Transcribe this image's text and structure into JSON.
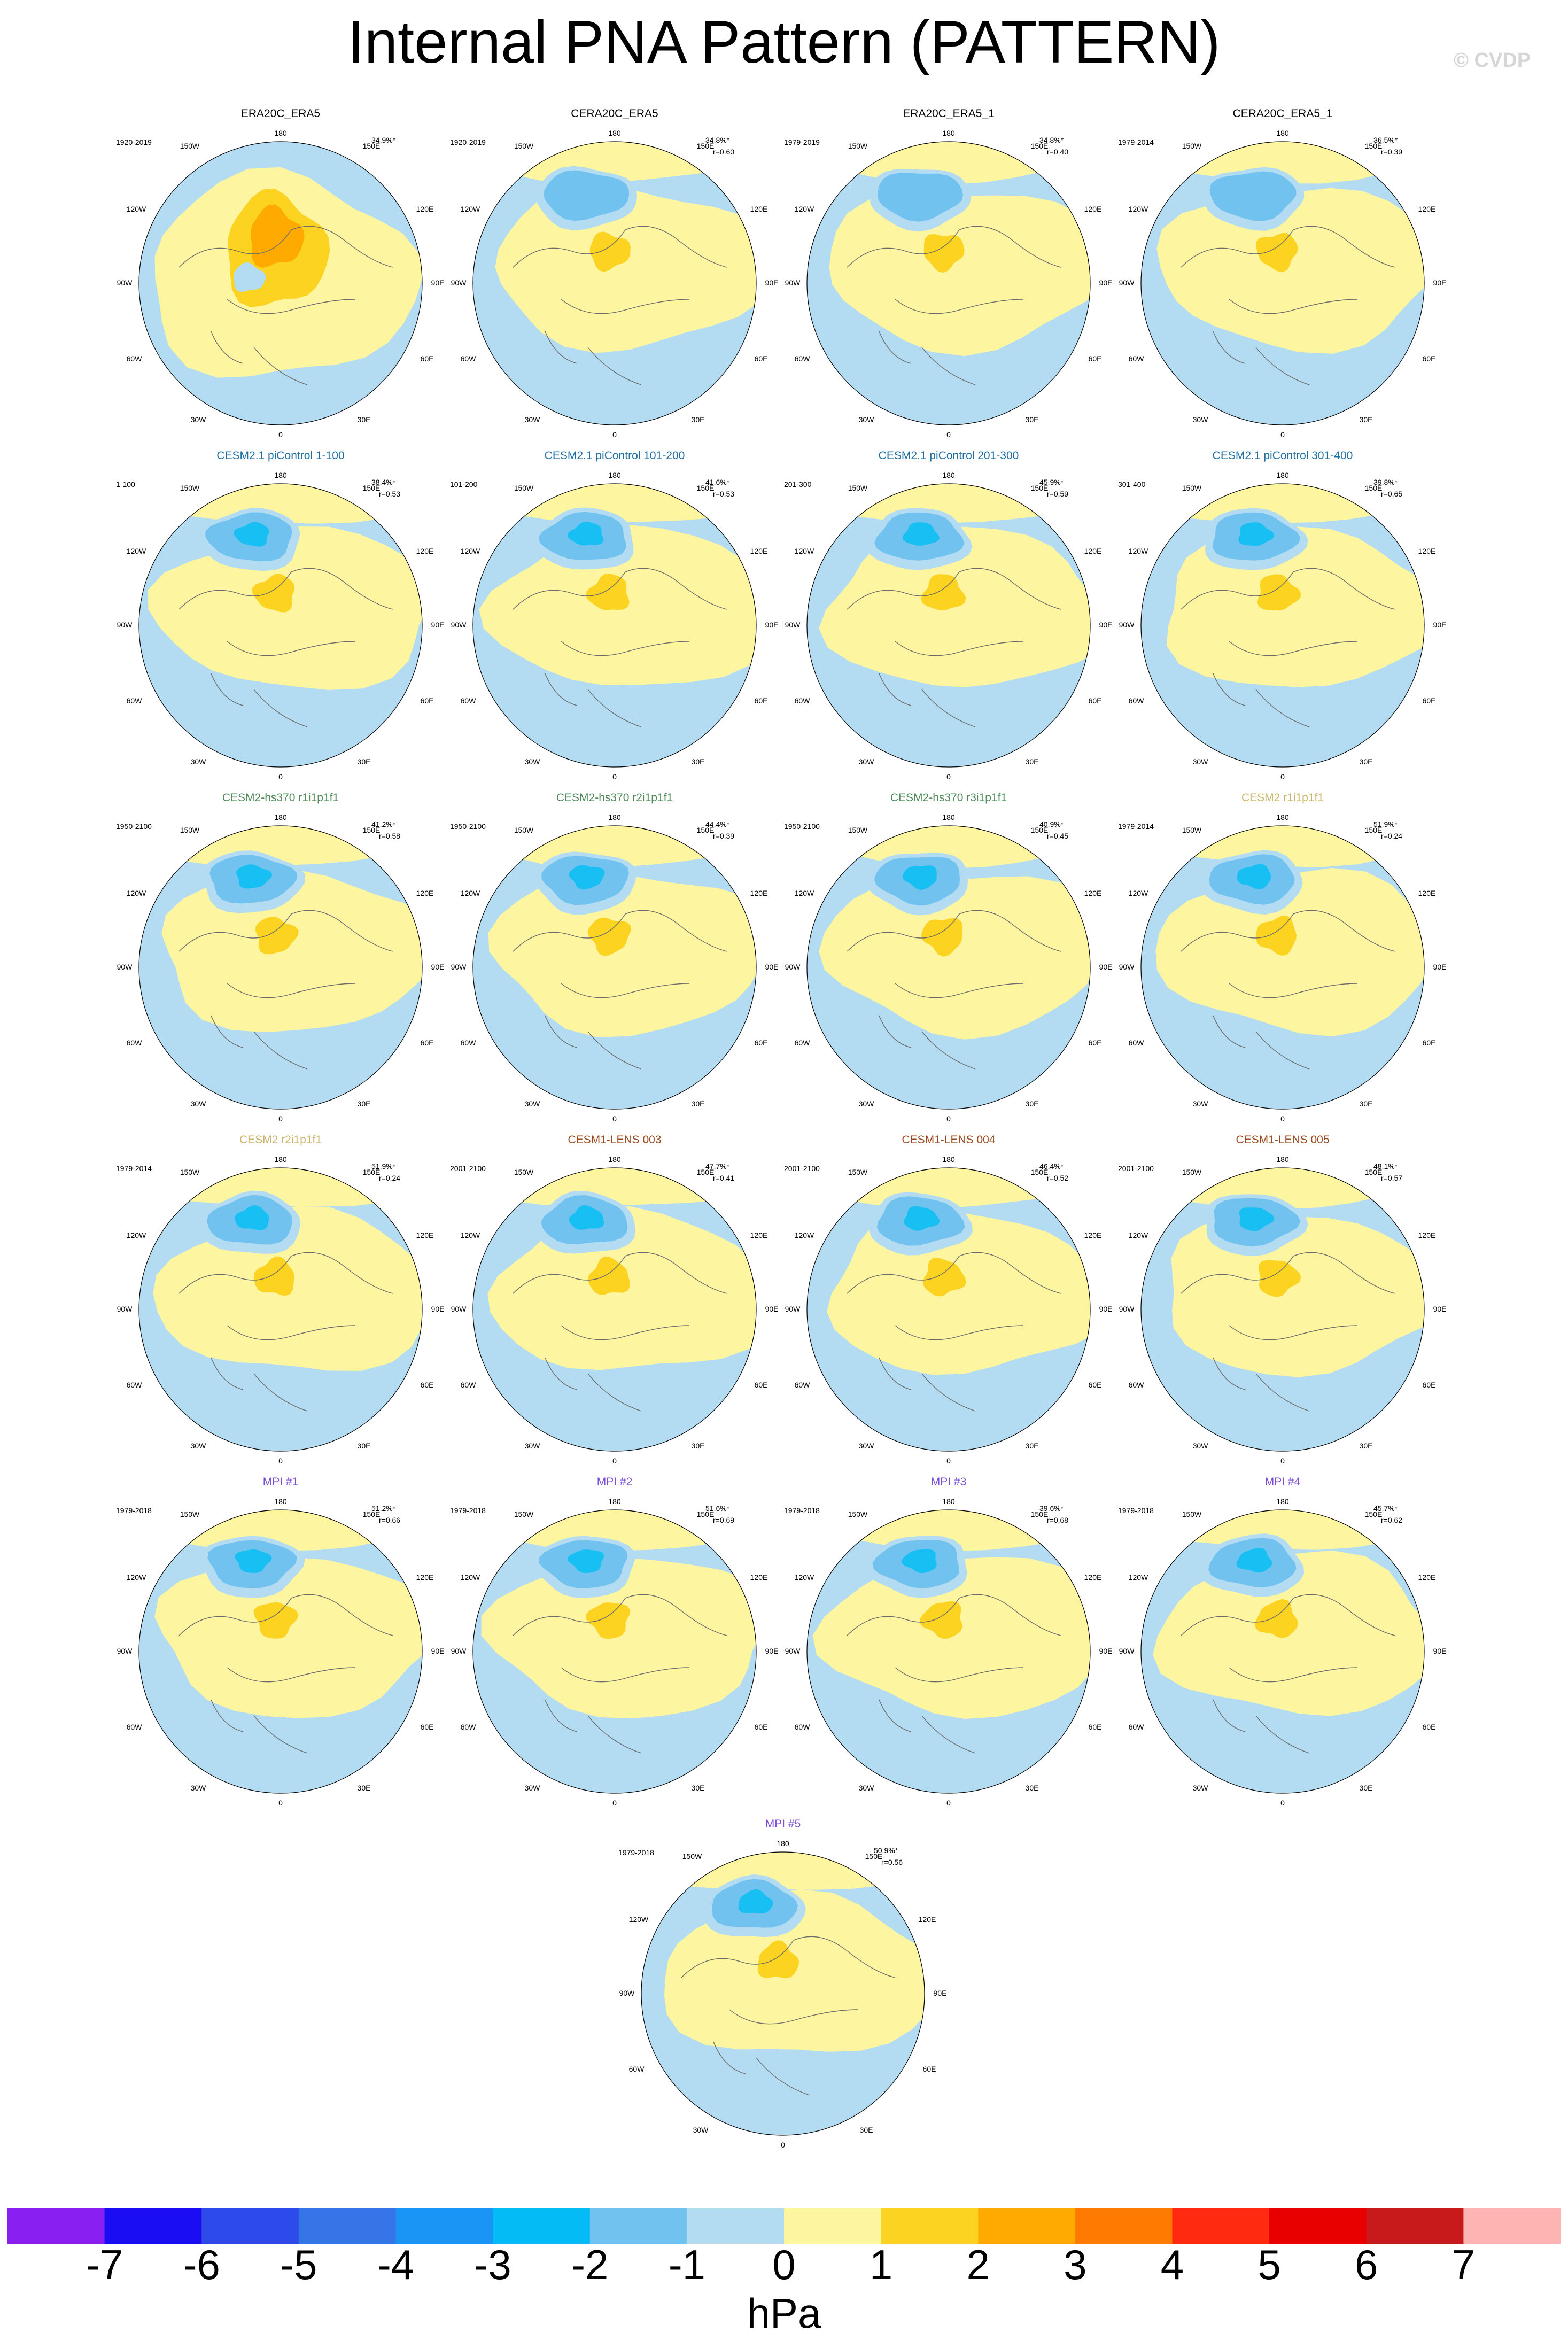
{
  "title": "Internal PNA Pattern (PATTERN)",
  "watermark": "© CVDP",
  "lon_labels": {
    "top": "180",
    "tl": "150W",
    "tr": "150E",
    "ul": "120W",
    "ur": "120E",
    "left": "90W",
    "right": "90E",
    "ll": "60W",
    "lr": "60E",
    "bl": "30W",
    "br": "30E",
    "bottom": "0"
  },
  "colors": {
    "obs_title": "#000000",
    "picontrol_title": "#1f6fa0",
    "hs370_title": "#4f8a5a",
    "cesm2_title": "#c8b468",
    "lens_title": "#9a4a1e",
    "mpi_title": "#7c4fd6",
    "neg_weak": "#b3dcf2",
    "neg_mid": "#72c2f0",
    "neg_strong": "#18bff2",
    "pos_weak": "#fdf5a0",
    "pos_mid": "#fcd321",
    "pos_strong": "#ffaa00"
  },
  "panels": [
    {
      "title": "ERA20C_ERA5",
      "color_key": "obs_title",
      "years": "1920-2019",
      "pct": "34.9%*",
      "r": ""
    },
    {
      "title": "CERA20C_ERA5",
      "color_key": "obs_title",
      "years": "1920-2019",
      "pct": "34.8%*",
      "r": "r=0.60"
    },
    {
      "title": "ERA20C_ERA5_1",
      "color_key": "obs_title",
      "years": "1979-2019",
      "pct": "34.8%*",
      "r": "r=0.40"
    },
    {
      "title": "CERA20C_ERA5_1",
      "color_key": "obs_title",
      "years": "1979-2014",
      "pct": "36.5%*",
      "r": "r=0.39"
    },
    {
      "title": "CESM2.1 piControl 1-100",
      "color_key": "picontrol_title",
      "years": "1-100",
      "pct": "38.4%*",
      "r": "r=0.53"
    },
    {
      "title": "CESM2.1 piControl 101-200",
      "color_key": "picontrol_title",
      "years": "101-200",
      "pct": "41.6%*",
      "r": "r=0.53"
    },
    {
      "title": "CESM2.1 piControl 201-300",
      "color_key": "picontrol_title",
      "years": "201-300",
      "pct": "45.9%*",
      "r": "r=0.59"
    },
    {
      "title": "CESM2.1 piControl 301-400",
      "color_key": "picontrol_title",
      "years": "301-400",
      "pct": "39.8%*",
      "r": "r=0.65"
    },
    {
      "title": "CESM2-hs370 r1i1p1f1",
      "color_key": "hs370_title",
      "years": "1950-2100",
      "pct": "41.2%*",
      "r": "r=0.58"
    },
    {
      "title": "CESM2-hs370 r2i1p1f1",
      "color_key": "hs370_title",
      "years": "1950-2100",
      "pct": "44.4%*",
      "r": "r=0.39"
    },
    {
      "title": "CESM2-hs370 r3i1p1f1",
      "color_key": "hs370_title",
      "years": "1950-2100",
      "pct": "40.9%*",
      "r": "r=0.45"
    },
    {
      "title": "CESM2 r1i1p1f1",
      "color_key": "cesm2_title",
      "years": "1979-2014",
      "pct": "51.9%*",
      "r": "r=0.24"
    },
    {
      "title": "CESM2 r2i1p1f1",
      "color_key": "cesm2_title",
      "years": "1979-2014",
      "pct": "51.9%*",
      "r": "r=0.24"
    },
    {
      "title": "CESM1-LENS 003",
      "color_key": "lens_title",
      "years": "2001-2100",
      "pct": "47.7%*",
      "r": "r=0.41"
    },
    {
      "title": "CESM1-LENS 004",
      "color_key": "lens_title",
      "years": "2001-2100",
      "pct": "46.4%*",
      "r": "r=0.52"
    },
    {
      "title": "CESM1-LENS 005",
      "color_key": "lens_title",
      "years": "2001-2100",
      "pct": "48.1%*",
      "r": "r=0.57"
    },
    {
      "title": "MPI #1",
      "color_key": "mpi_title",
      "years": "1979-2018",
      "pct": "51.2%*",
      "r": "r=0.66"
    },
    {
      "title": "MPI #2",
      "color_key": "mpi_title",
      "years": "1979-2018",
      "pct": "51.6%*",
      "r": "r=0.69"
    },
    {
      "title": "MPI #3",
      "color_key": "mpi_title",
      "years": "1979-2018",
      "pct": "39.6%*",
      "r": "r=0.68"
    },
    {
      "title": "MPI #4",
      "color_key": "mpi_title",
      "years": "1979-2018",
      "pct": "45.7%*",
      "r": "r=0.62"
    },
    {
      "title": "MPI #5",
      "color_key": "mpi_title",
      "years": "1979-2018",
      "pct": "50.9%*",
      "r": "r=0.56"
    }
  ],
  "colorbar": {
    "unit": "hPa",
    "tick_labels": [
      "-7",
      "-6",
      "-5",
      "-4",
      "-3",
      "-2",
      "-1",
      "0",
      "1",
      "2",
      "3",
      "4",
      "5",
      "6",
      "7"
    ],
    "colors": [
      "#8a1ff2",
      "#1a0df2",
      "#2c4bea",
      "#3575e8",
      "#1a95f5",
      "#05bbf5",
      "#72c2f0",
      "#b3dcf2",
      "#fdf5a0",
      "#fcd321",
      "#ffaa00",
      "#ff7a00",
      "#ff2a10",
      "#e80000",
      "#c81a1a",
      "#ffb4b4"
    ]
  }
}
